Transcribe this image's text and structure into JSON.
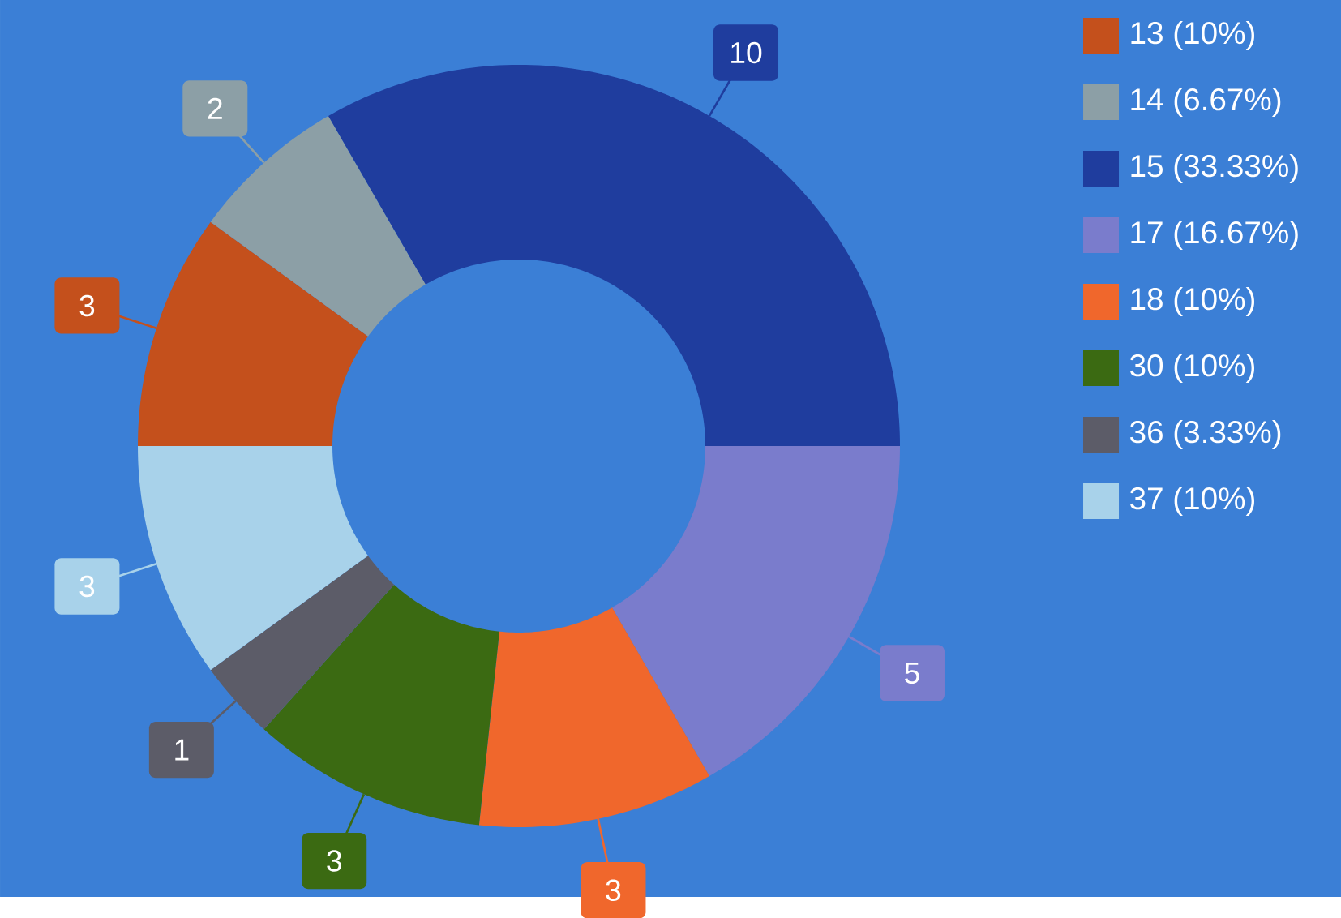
{
  "chart_data": {
    "type": "donut",
    "categories": [
      "13 (10%)",
      "14 (6.67%)",
      "15 (33.33%)",
      "17 (16.67%)",
      "18 (10%)",
      "30 (10%)",
      "36 (3.33%)",
      "37 (10%)"
    ],
    "values": [
      3,
      2,
      10,
      5,
      3,
      3,
      1,
      3
    ],
    "colors": [
      "#c4501c",
      "#8c9fa6",
      "#1f3d9e",
      "#7a7ccc",
      "#f0672c",
      "#3b6a12",
      "#5c5c68",
      "#a8d2ea"
    ],
    "data_labels": true,
    "legend": "right"
  }
}
